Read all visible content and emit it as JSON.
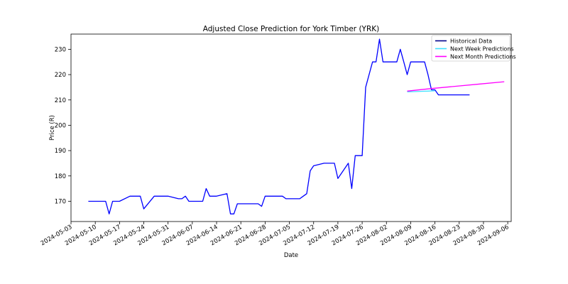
{
  "chart_data": {
    "type": "line",
    "title": "Adjusted Close Prediction for York Timber (YRK)",
    "xlabel": "Date",
    "ylabel": "Price (R)",
    "xlim": [
      "2024-05-03",
      "2024-09-07"
    ],
    "ylim": [
      162,
      236
    ],
    "x_ticks": [
      "2024-05-03",
      "2024-05-10",
      "2024-05-17",
      "2024-05-24",
      "2024-05-31",
      "2024-06-07",
      "2024-06-14",
      "2024-06-21",
      "2024-06-28",
      "2024-07-05",
      "2024-07-12",
      "2024-07-19",
      "2024-07-26",
      "2024-08-02",
      "2024-08-09",
      "2024-08-16",
      "2024-08-23",
      "2024-08-30",
      "2024-09-06"
    ],
    "y_ticks": [
      170,
      180,
      190,
      200,
      210,
      220,
      230
    ],
    "grid": false,
    "legend_position": "top-right",
    "series": [
      {
        "name": "Historical Data",
        "color": "#0000ff",
        "legend_color": "#00008b",
        "points": [
          [
            "2024-05-08",
            170
          ],
          [
            "2024-05-09",
            170
          ],
          [
            "2024-05-10",
            170
          ],
          [
            "2024-05-13",
            170
          ],
          [
            "2024-05-14",
            165
          ],
          [
            "2024-05-15",
            170
          ],
          [
            "2024-05-16",
            170
          ],
          [
            "2024-05-17",
            170
          ],
          [
            "2024-05-20",
            172
          ],
          [
            "2024-05-21",
            172
          ],
          [
            "2024-05-22",
            172
          ],
          [
            "2024-05-23",
            172
          ],
          [
            "2024-05-24",
            167
          ],
          [
            "2024-05-27",
            172
          ],
          [
            "2024-05-28",
            172
          ],
          [
            "2024-05-29",
            172
          ],
          [
            "2024-05-30",
            172
          ],
          [
            "2024-05-31",
            172
          ],
          [
            "2024-06-03",
            171
          ],
          [
            "2024-06-04",
            171
          ],
          [
            "2024-06-05",
            172
          ],
          [
            "2024-06-06",
            170
          ],
          [
            "2024-06-07",
            170
          ],
          [
            "2024-06-10",
            170
          ],
          [
            "2024-06-11",
            175
          ],
          [
            "2024-06-12",
            172
          ],
          [
            "2024-06-13",
            172
          ],
          [
            "2024-06-14",
            172
          ],
          [
            "2024-06-17",
            173
          ],
          [
            "2024-06-18",
            165
          ],
          [
            "2024-06-19",
            165
          ],
          [
            "2024-06-20",
            169
          ],
          [
            "2024-06-21",
            169
          ],
          [
            "2024-06-24",
            169
          ],
          [
            "2024-06-25",
            169
          ],
          [
            "2024-06-26",
            169
          ],
          [
            "2024-06-27",
            168
          ],
          [
            "2024-06-28",
            172
          ],
          [
            "2024-07-01",
            172
          ],
          [
            "2024-07-02",
            172
          ],
          [
            "2024-07-03",
            172
          ],
          [
            "2024-07-04",
            171
          ],
          [
            "2024-07-05",
            171
          ],
          [
            "2024-07-08",
            171
          ],
          [
            "2024-07-09",
            172
          ],
          [
            "2024-07-10",
            173
          ],
          [
            "2024-07-11",
            182
          ],
          [
            "2024-07-12",
            184
          ],
          [
            "2024-07-15",
            185
          ],
          [
            "2024-07-16",
            185
          ],
          [
            "2024-07-17",
            185
          ],
          [
            "2024-07-18",
            185
          ],
          [
            "2024-07-19",
            179
          ],
          [
            "2024-07-22",
            185
          ],
          [
            "2024-07-23",
            175
          ],
          [
            "2024-07-24",
            188
          ],
          [
            "2024-07-25",
            188
          ],
          [
            "2024-07-26",
            188
          ],
          [
            "2024-07-27",
            215
          ],
          [
            "2024-07-29",
            225
          ],
          [
            "2024-07-30",
            225
          ],
          [
            "2024-07-31",
            234
          ],
          [
            "2024-08-01",
            225
          ],
          [
            "2024-08-02",
            225
          ],
          [
            "2024-08-03",
            225
          ],
          [
            "2024-08-05",
            225
          ],
          [
            "2024-08-06",
            230
          ],
          [
            "2024-08-07",
            225
          ],
          [
            "2024-08-08",
            220
          ],
          [
            "2024-08-09",
            225
          ],
          [
            "2024-08-12",
            225
          ],
          [
            "2024-08-13",
            225
          ],
          [
            "2024-08-14",
            220
          ],
          [
            "2024-08-15",
            214
          ],
          [
            "2024-08-16",
            214
          ],
          [
            "2024-08-17",
            212
          ],
          [
            "2024-08-19",
            212
          ],
          [
            "2024-08-20",
            212
          ],
          [
            "2024-08-21",
            212
          ],
          [
            "2024-08-22",
            212
          ],
          [
            "2024-08-23",
            212
          ],
          [
            "2024-08-26",
            212
          ]
        ]
      },
      {
        "name": "Next Week Predictions",
        "color": "#40e0ff",
        "points": [
          [
            "2024-08-08",
            213.2
          ],
          [
            "2024-08-10",
            213.3
          ],
          [
            "2024-08-12",
            213.4
          ],
          [
            "2024-08-14",
            213.5
          ],
          [
            "2024-08-16",
            213.6
          ]
        ]
      },
      {
        "name": "Next Month Predictions",
        "color": "#ff00ff",
        "points": [
          [
            "2024-08-08",
            213.5
          ],
          [
            "2024-08-15",
            214.5
          ],
          [
            "2024-08-22",
            215.4
          ],
          [
            "2024-08-29",
            216.3
          ],
          [
            "2024-09-05",
            217.2
          ]
        ]
      }
    ]
  }
}
